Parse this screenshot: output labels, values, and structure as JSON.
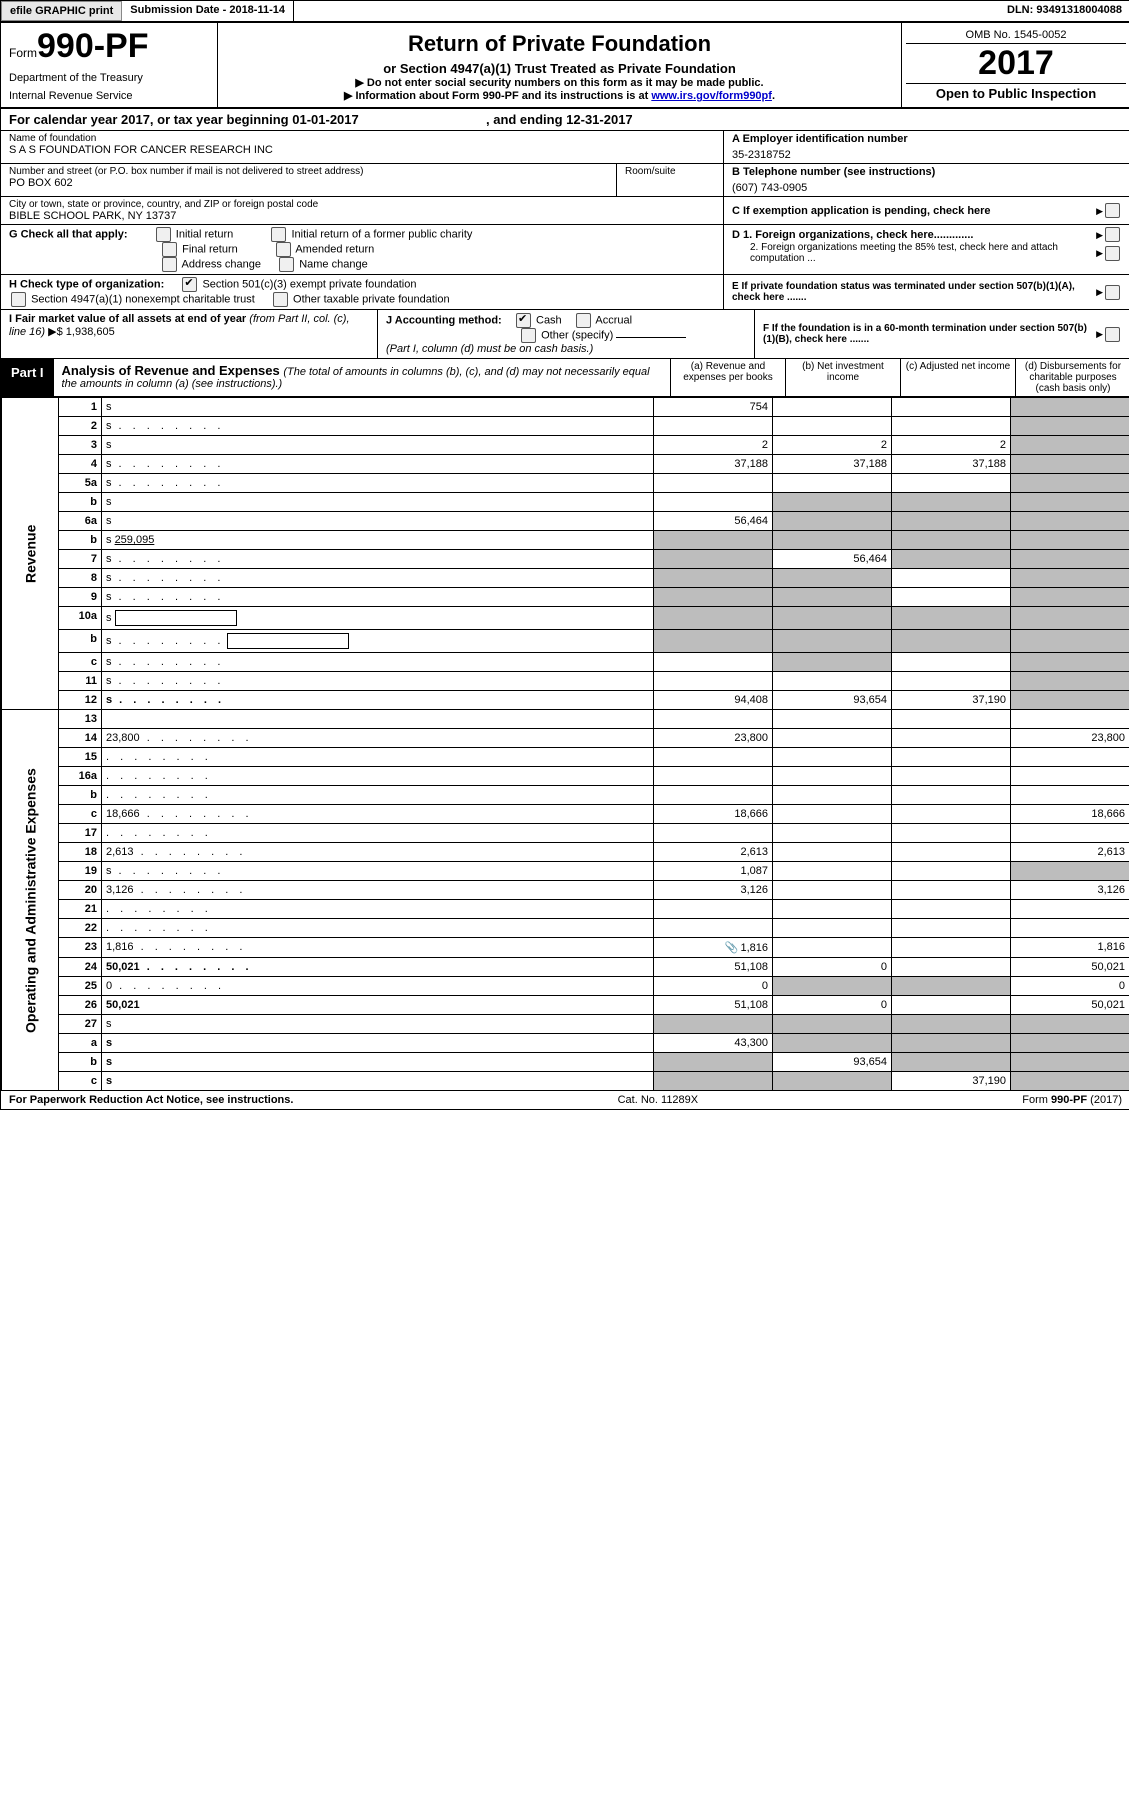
{
  "topbar": {
    "efile": "efile GRAPHIC print",
    "submission_label": "Submission Date - ",
    "submission_date": "2018-11-14",
    "dln_label": "DLN: ",
    "dln": "93491318004088"
  },
  "header": {
    "form_prefix": "Form",
    "form_code": "990-PF",
    "dept1": "Department of the Treasury",
    "dept2": "Internal Revenue Service",
    "title": "Return of Private Foundation",
    "subtitle": "or Section 4947(a)(1) Trust Treated as Private Foundation",
    "note1": "▶ Do not enter social security numbers on this form as it may be made public.",
    "note2_a": "▶ Information about Form 990-PF and its instructions is at ",
    "note2_link": "www.irs.gov/form990pf",
    "note2_b": ".",
    "omb": "OMB No. 1545-0052",
    "year": "2017",
    "open": "Open to Public Inspection"
  },
  "cal": {
    "prefix": "For calendar year 2017, or tax year beginning ",
    "begin": "01-01-2017",
    "mid": " , and ending ",
    "end": "12-31-2017"
  },
  "name": {
    "label": "Name of foundation",
    "value": "S A S FOUNDATION FOR CANCER RESEARCH INC"
  },
  "ein": {
    "label": "A Employer identification number",
    "value": "35-2318752"
  },
  "addr": {
    "street_label": "Number and street (or P.O. box number if mail is not delivered to street address)",
    "room_label": "Room/suite",
    "street": "PO BOX 602",
    "city_label": "City or town, state or province, country, and ZIP or foreign postal code",
    "city": "BIBLE SCHOOL PARK, NY  13737"
  },
  "tel": {
    "label": "B Telephone number (see instructions)",
    "value": "(607) 743-0905"
  },
  "c": "C If exemption application is pending, check here",
  "g": {
    "label": "G Check all that apply:",
    "o1": "Initial return",
    "o2": "Initial return of a former public charity",
    "o3": "Final return",
    "o4": "Amended return",
    "o5": "Address change",
    "o6": "Name change"
  },
  "h": {
    "label": "H Check type of organization:",
    "o1": "Section 501(c)(3) exempt private foundation",
    "o2": "Section 4947(a)(1) nonexempt charitable trust",
    "o3": "Other taxable private foundation"
  },
  "d": {
    "l1": "D 1. Foreign organizations, check here.............",
    "l2": "2. Foreign organizations meeting the 85% test, check here and attach computation ..."
  },
  "e": "E  If private foundation status was terminated under section 507(b)(1)(A), check here .......",
  "f": "F  If the foundation is in a 60-month termination under section 507(b)(1)(B), check here .......",
  "i": {
    "label": "I Fair market value of all assets at end of year ",
    "ital": "(from Part II, col. (c), line 16)",
    "arrow": "▶$  ",
    "value": "1,938,605"
  },
  "j": {
    "label": "J Accounting method:",
    "cash": "Cash",
    "accrual": "Accrual",
    "other": "Other (specify)",
    "note": "(Part I, column (d) must be on cash basis.)"
  },
  "part1": {
    "badge": "Part I",
    "title": "Analysis of Revenue and Expenses ",
    "desc": "(The total of amounts in columns (b), (c), and (d) may not necessarily equal the amounts in column (a) (see instructions).)",
    "cols": {
      "a": "(a)   Revenue and expenses per books",
      "b": "(b)   Net investment income",
      "c": "(c)   Adjusted net income",
      "d": "(d)   Disbursements for charitable purposes (cash basis only)"
    }
  },
  "vlabels": {
    "rev": "Revenue",
    "oae": "Operating and Administrative Expenses"
  },
  "rows": [
    {
      "n": "1",
      "d": "s",
      "a": "754",
      "b": "",
      "c": ""
    },
    {
      "n": "2",
      "d": "s",
      "a": "",
      "b": "",
      "c": "",
      "dots": true,
      "bold_not": true
    },
    {
      "n": "3",
      "d": "s",
      "a": "2",
      "b": "2",
      "c": "2"
    },
    {
      "n": "4",
      "d": "s",
      "a": "37,188",
      "b": "37,188",
      "c": "37,188",
      "dots": true
    },
    {
      "n": "5a",
      "d": "s",
      "a": "",
      "b": "",
      "c": "",
      "dots": true
    },
    {
      "n": "b",
      "d": "s",
      "a": "",
      "b": "s",
      "c": "s"
    },
    {
      "n": "6a",
      "d": "s",
      "a": "56,464",
      "b": "s",
      "c": "s"
    },
    {
      "n": "b",
      "d": "s",
      "v_inline": "259,095",
      "a": "s",
      "b": "s",
      "c": "s"
    },
    {
      "n": "7",
      "d": "s",
      "a": "s",
      "b": "56,464",
      "c": "s",
      "dots": true
    },
    {
      "n": "8",
      "d": "s",
      "a": "s",
      "b": "s",
      "c": "",
      "dots": true
    },
    {
      "n": "9",
      "d": "s",
      "a": "s",
      "b": "s",
      "c": "",
      "dots": true
    },
    {
      "n": "10a",
      "d": "s",
      "a": "s",
      "b": "s",
      "c": "s",
      "box": true
    },
    {
      "n": "b",
      "d": "s",
      "a": "s",
      "b": "s",
      "c": "s",
      "dots": true,
      "box": true
    },
    {
      "n": "c",
      "d": "s",
      "a": "",
      "b": "s",
      "c": "",
      "dots": true
    },
    {
      "n": "11",
      "d": "s",
      "a": "",
      "b": "",
      "c": "",
      "dots": true
    },
    {
      "n": "12",
      "d": "s",
      "a": "94,408",
      "b": "93,654",
      "c": "37,190",
      "bold": true,
      "dots": true
    },
    {
      "n": "13",
      "d": "",
      "a": "",
      "b": "",
      "c": ""
    },
    {
      "n": "14",
      "d": "23,800",
      "a": "23,800",
      "b": "",
      "c": "",
      "dots": true
    },
    {
      "n": "15",
      "d": "",
      "a": "",
      "b": "",
      "c": "",
      "dots": true
    },
    {
      "n": "16a",
      "d": "",
      "a": "",
      "b": "",
      "c": "",
      "dots": true
    },
    {
      "n": "b",
      "d": "",
      "a": "",
      "b": "",
      "c": "",
      "dots": true
    },
    {
      "n": "c",
      "d": "18,666",
      "a": "18,666",
      "b": "",
      "c": "",
      "dots": true
    },
    {
      "n": "17",
      "d": "",
      "a": "",
      "b": "",
      "c": "",
      "dots": true
    },
    {
      "n": "18",
      "d": "2,613",
      "a": "2,613",
      "b": "",
      "c": "",
      "dots": true
    },
    {
      "n": "19",
      "d": "s",
      "a": "1,087",
      "b": "",
      "c": "",
      "dots": true
    },
    {
      "n": "20",
      "d": "3,126",
      "a": "3,126",
      "b": "",
      "c": "",
      "dots": true
    },
    {
      "n": "21",
      "d": "",
      "a": "",
      "b": "",
      "c": "",
      "dots": true
    },
    {
      "n": "22",
      "d": "",
      "a": "",
      "b": "",
      "c": "",
      "dots": true
    },
    {
      "n": "23",
      "d": "1,816",
      "a": "1,816",
      "b": "",
      "c": "",
      "dots": true,
      "clip": true
    },
    {
      "n": "24",
      "d": "50,021",
      "a": "51,108",
      "b": "0",
      "c": "",
      "bold": true,
      "dots": true
    },
    {
      "n": "25",
      "d": "0",
      "a": "0",
      "b": "s",
      "c": "s",
      "dots": true
    },
    {
      "n": "26",
      "d": "50,021",
      "a": "51,108",
      "b": "0",
      "c": "",
      "bold": true
    },
    {
      "n": "27",
      "d": "s",
      "a": "s",
      "b": "s",
      "c": "s"
    },
    {
      "n": "a",
      "d": "s",
      "a": "43,300",
      "b": "s",
      "c": "s",
      "bold": true
    },
    {
      "n": "b",
      "d": "s",
      "a": "s",
      "b": "93,654",
      "c": "s",
      "bold": true
    },
    {
      "n": "c",
      "d": "s",
      "a": "s",
      "b": "s",
      "c": "37,190",
      "bold": true
    }
  ],
  "footer": {
    "left": "For Paperwork Reduction Act Notice, see instructions.",
    "mid": "Cat. No. 11289X",
    "right": "Form 990-PF (2017)"
  }
}
